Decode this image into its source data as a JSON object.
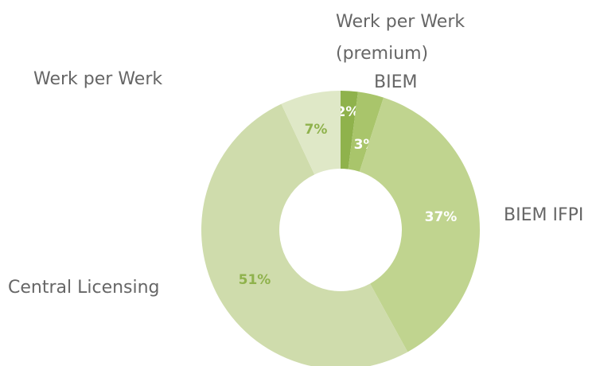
{
  "chart_data": {
    "type": "donut",
    "categories": [
      "Werk per Werk (premium)",
      "BIEM",
      "BIEM IFPI",
      "Central Licensing",
      "Werk per Werk"
    ],
    "values": [
      2,
      3,
      37,
      51,
      7
    ],
    "value_labels": [
      "2%",
      "3%",
      "37%",
      "51%",
      "7%"
    ],
    "colors": [
      "#8fb24c",
      "#a9c56b",
      "#c0d48f",
      "#cfdcac",
      "#dfe8c7"
    ]
  }
}
